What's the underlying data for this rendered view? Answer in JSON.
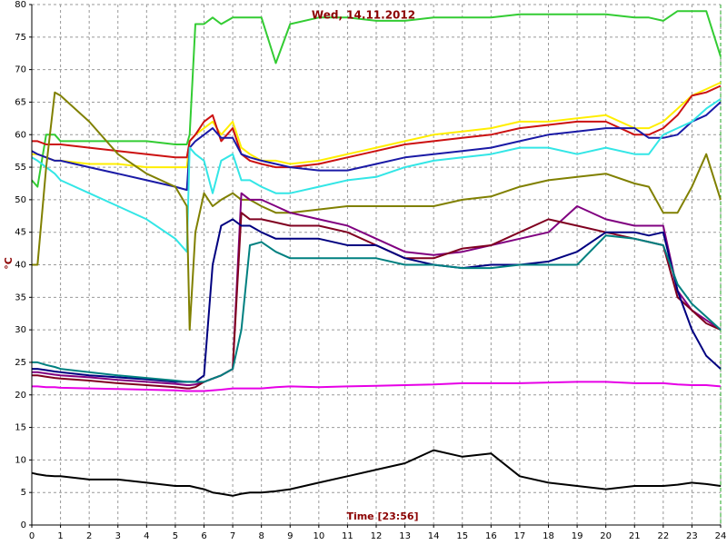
{
  "chart_data": {
    "type": "line",
    "title": "Wed, 14.11.2012",
    "x_label": "Time [23:56]",
    "y_label": "°C",
    "x": [
      0,
      0.2,
      0.5,
      0.8,
      1,
      2,
      3,
      4,
      5,
      5.4,
      5.5,
      5.7,
      6,
      6.3,
      6.6,
      7,
      7.3,
      7.6,
      8,
      8.5,
      9,
      10,
      11,
      12,
      13,
      14,
      15,
      16,
      17,
      18,
      19,
      20,
      21,
      21.5,
      22,
      22.5,
      23,
      23.5,
      24
    ],
    "xlim": [
      0,
      24
    ],
    "xticks": [
      0,
      1,
      2,
      3,
      4,
      5,
      6,
      7,
      8,
      9,
      10,
      11,
      12,
      13,
      14,
      15,
      16,
      17,
      18,
      19,
      20,
      21,
      22,
      23,
      24
    ],
    "ylim": [
      0,
      80
    ],
    "yticks": [
      0,
      5,
      10,
      15,
      20,
      25,
      30,
      35,
      40,
      45,
      50,
      55,
      60,
      65,
      70,
      75,
      80
    ],
    "grid": true,
    "series": [
      {
        "color": "#33cc33",
        "values": [
          53,
          52,
          60,
          60,
          59,
          59,
          59,
          59,
          58.5,
          58.5,
          60,
          77,
          77,
          78,
          77,
          78,
          78,
          78,
          78,
          71,
          77,
          78,
          78,
          77.5,
          77.5,
          78,
          78,
          78,
          78.5,
          78.5,
          78.5,
          78.5,
          78,
          78,
          77.5,
          79,
          79,
          79,
          72
        ]
      },
      {
        "color": "#ffee00",
        "values": [
          57,
          57,
          56.5,
          56,
          56,
          55.5,
          55.5,
          55,
          55,
          55,
          59,
          60,
          61,
          62,
          60,
          62,
          58,
          57,
          56,
          56,
          55.5,
          56,
          57,
          58,
          59,
          60,
          60.5,
          61,
          62,
          62,
          62.5,
          63,
          61,
          61,
          62,
          64,
          66,
          67,
          68
        ]
      },
      {
        "color": "#cc1111",
        "values": [
          59,
          59,
          58.5,
          58.5,
          58.5,
          58,
          57.5,
          57,
          56.5,
          56.5,
          59,
          60,
          62,
          63,
          59,
          61,
          57,
          56,
          55.5,
          55,
          55,
          55.5,
          56.5,
          57.5,
          58.5,
          59,
          59.5,
          60,
          61,
          61.5,
          62,
          62,
          60,
          60,
          61,
          63,
          66,
          66.5,
          67.5
        ]
      },
      {
        "color": "#1a1aa6",
        "values": [
          57.5,
          57,
          56.5,
          56,
          56,
          55,
          54,
          53,
          52,
          51.5,
          58,
          59,
          60,
          61,
          59.5,
          59.5,
          57,
          56.5,
          56,
          55.5,
          55,
          54.5,
          54.5,
          55.5,
          56.5,
          57,
          57.5,
          58,
          59,
          60,
          60.5,
          61,
          61,
          59.5,
          59.5,
          60,
          62,
          63,
          65
        ]
      },
      {
        "color": "#33e6e6",
        "values": [
          56.5,
          56,
          55,
          54,
          53,
          51,
          49,
          47,
          44,
          42,
          58,
          57,
          56,
          51,
          56,
          57,
          53,
          53,
          52,
          51,
          51,
          52,
          53,
          53.5,
          55,
          56,
          56.5,
          57,
          58,
          58,
          57,
          58,
          57,
          57,
          60,
          61,
          62,
          64,
          65.5
        ]
      },
      {
        "color": "#808000",
        "values": [
          40,
          40,
          55,
          66.5,
          66,
          62,
          57,
          54,
          52,
          49,
          30,
          45,
          51,
          49,
          50,
          51,
          50,
          50,
          49,
          48,
          48,
          48.5,
          49,
          49,
          49,
          49,
          50,
          50.5,
          52,
          53,
          53.5,
          54,
          52.5,
          52,
          48,
          48,
          52,
          57,
          50
        ]
      },
      {
        "color": "#800080",
        "values": [
          23.5,
          23.5,
          23.3,
          23.1,
          23,
          22.7,
          22.3,
          22,
          21.7,
          21.5,
          21.5,
          21.6,
          22,
          22.5,
          23,
          24,
          51,
          50,
          50,
          49,
          48,
          47,
          46,
          44,
          42,
          41.5,
          42,
          43,
          44,
          45,
          49,
          47,
          46,
          46,
          46,
          36,
          33,
          31.5,
          30
        ]
      },
      {
        "color": "#800020",
        "values": [
          23,
          23,
          22.8,
          22.6,
          22.5,
          22.2,
          21.8,
          21.5,
          21.2,
          21,
          21,
          21.2,
          22,
          22.5,
          23,
          24,
          48,
          47,
          47,
          46.5,
          46,
          46,
          45,
          43,
          41,
          41,
          42.5,
          43,
          45,
          47,
          46,
          45,
          44,
          43.5,
          43,
          35,
          33,
          31,
          30
        ]
      },
      {
        "color": "#000080",
        "values": [
          24,
          24,
          23.8,
          23.6,
          23.5,
          23,
          22.7,
          22.4,
          22,
          22,
          22,
          22,
          23,
          40,
          46,
          47,
          46,
          46,
          45,
          44,
          44,
          44,
          43,
          43,
          41,
          40,
          39.5,
          40,
          40,
          40.5,
          42,
          45,
          45,
          44.5,
          45,
          36,
          30,
          26,
          24
        ]
      },
      {
        "color": "#008080",
        "values": [
          25,
          25,
          24.6,
          24.3,
          24,
          23.5,
          23,
          22.6,
          22.2,
          22,
          22,
          22,
          22,
          22.5,
          23,
          24,
          30,
          43,
          43.5,
          42,
          41,
          41,
          41,
          41,
          40,
          40,
          39.5,
          39.5,
          40,
          40,
          40,
          44.5,
          44,
          43.5,
          43,
          37,
          34,
          32,
          30
        ]
      },
      {
        "color": "#e600e6",
        "values": [
          21.3,
          21.3,
          21.2,
          21.2,
          21.1,
          21,
          20.9,
          20.8,
          20.7,
          20.6,
          20.6,
          20.6,
          20.6,
          20.7,
          20.8,
          21,
          21,
          21,
          21,
          21.2,
          21.3,
          21.2,
          21.3,
          21.4,
          21.5,
          21.6,
          21.8,
          21.8,
          21.8,
          21.9,
          22,
          22,
          21.8,
          21.8,
          21.8,
          21.6,
          21.5,
          21.5,
          21.3
        ]
      },
      {
        "color": "#000000",
        "values": [
          8,
          7.8,
          7.6,
          7.5,
          7.5,
          7,
          7,
          6.5,
          6,
          6,
          6,
          5.8,
          5.5,
          5,
          4.8,
          4.5,
          4.8,
          5,
          5,
          5.2,
          5.5,
          6.5,
          7.5,
          8.5,
          9.5,
          11.5,
          10.5,
          11,
          7.5,
          6.5,
          6,
          5.5,
          6,
          6,
          6,
          6.2,
          6.5,
          6.3,
          6
        ]
      }
    ]
  }
}
